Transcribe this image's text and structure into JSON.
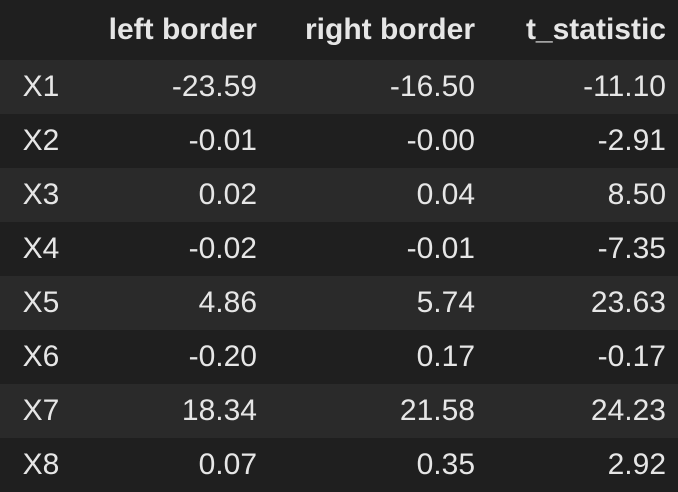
{
  "table": {
    "columns": [
      "left border",
      "right border",
      "t_statistic"
    ],
    "rows": [
      {
        "index": "X1",
        "values": [
          "-23.59",
          "-16.50",
          "-11.10"
        ]
      },
      {
        "index": "X2",
        "values": [
          "-0.01",
          "-0.00",
          "-2.91"
        ]
      },
      {
        "index": "X3",
        "values": [
          "0.02",
          "0.04",
          "8.50"
        ]
      },
      {
        "index": "X4",
        "values": [
          "-0.02",
          "-0.01",
          "-7.35"
        ]
      },
      {
        "index": "X5",
        "values": [
          "4.86",
          "5.74",
          "23.63"
        ]
      },
      {
        "index": "X6",
        "values": [
          "-0.20",
          "0.17",
          "-0.17"
        ]
      },
      {
        "index": "X7",
        "values": [
          "18.34",
          "21.58",
          "24.23"
        ]
      },
      {
        "index": "X8",
        "values": [
          "0.07",
          "0.35",
          "2.92"
        ]
      }
    ]
  },
  "colors": {
    "background": "#1f1f1f",
    "stripe": "#2a2a2a",
    "text": "#e6e6e6"
  }
}
